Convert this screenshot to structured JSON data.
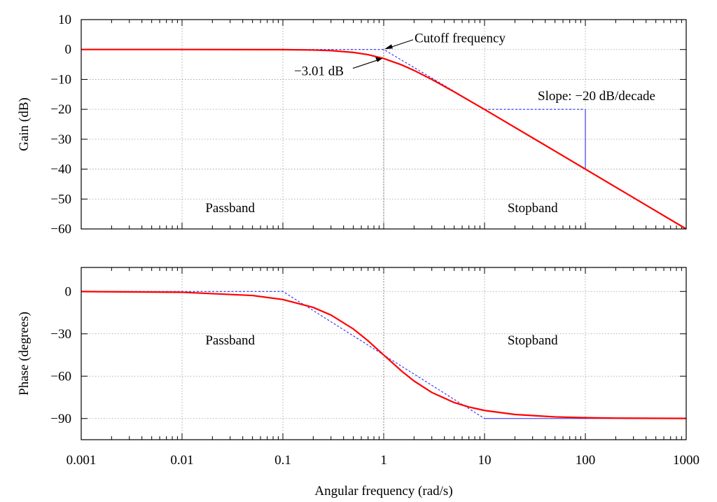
{
  "chart_data": [
    {
      "type": "line",
      "name": "magnitude",
      "xscale": "log",
      "xlim": [
        0.001,
        1000
      ],
      "ylim": [
        -60,
        10
      ],
      "ylabel": "Gain (dB)",
      "yticks": [
        10,
        0,
        -10,
        -20,
        -30,
        -40,
        -50,
        -60
      ],
      "ytick_labels": [
        "10",
        "0",
        "−10",
        "−20",
        "−30",
        "−40",
        "−50",
        "−60"
      ],
      "grid": true,
      "series": [
        {
          "name": "Gain",
          "color": "#ff0000",
          "x": [
            0.001,
            0.01,
            0.1,
            0.2,
            0.3,
            0.5,
            0.7,
            1,
            1.5,
            2,
            3,
            5,
            10,
            20,
            50,
            100,
            200,
            500,
            1000
          ],
          "y": [
            0,
            0,
            -0.04,
            -0.17,
            -0.37,
            -0.97,
            -1.73,
            -3.01,
            -5.12,
            -6.99,
            -10.0,
            -14.15,
            -20.04,
            -26.03,
            -33.98,
            -40.0,
            -46.02,
            -53.98,
            -60.0
          ]
        },
        {
          "name": "Asymptote",
          "color": "#2b2bff",
          "x": [
            0.001,
            1,
            1000
          ],
          "y": [
            0,
            0,
            -60
          ]
        }
      ],
      "slope_triangle": {
        "x": [
          10,
          100
        ],
        "y": [
          -20,
          -40
        ]
      },
      "annotations": [
        {
          "text": "Cutoff frequency",
          "x": 1,
          "y": 0
        },
        {
          "text": "−3.01 dB",
          "x": 1,
          "y": -3.01
        },
        {
          "text": "Slope: −20 dB/decade",
          "x": 100,
          "y": -20
        },
        {
          "text": "Passband",
          "x": 0.03,
          "y": -53
        },
        {
          "text": "Stopband",
          "x": 30,
          "y": -53
        }
      ]
    },
    {
      "type": "line",
      "name": "phase",
      "xscale": "log",
      "xlim": [
        0.001,
        1000
      ],
      "ylim": [
        -105,
        17
      ],
      "ylabel": "Phase (degrees)",
      "xlabel": "Angular frequency (rad/s)",
      "xticks": [
        0.001,
        0.01,
        0.1,
        1,
        10,
        100,
        1000
      ],
      "xtick_labels": [
        "0.001",
        "0.01",
        "0.1",
        "1",
        "10",
        "100",
        "1000"
      ],
      "yticks": [
        0,
        -30,
        -60,
        -90
      ],
      "ytick_labels": [
        "0",
        "−30",
        "−60",
        "−90"
      ],
      "grid": true,
      "series": [
        {
          "name": "Phase",
          "color": "#ff0000",
          "x": [
            0.001,
            0.01,
            0.05,
            0.1,
            0.2,
            0.3,
            0.5,
            0.7,
            1,
            1.5,
            2,
            3,
            5,
            7,
            10,
            20,
            50,
            100,
            200,
            1000
          ],
          "y": [
            -0.06,
            -0.57,
            -2.86,
            -5.71,
            -11.31,
            -16.7,
            -26.57,
            -34.99,
            -45,
            -56.31,
            -63.43,
            -71.57,
            -78.69,
            -81.87,
            -84.29,
            -87.14,
            -88.85,
            -89.43,
            -89.71,
            -89.94
          ]
        },
        {
          "name": "Asymptote",
          "color": "#2b2bff",
          "x": [
            0.001,
            0.1,
            10,
            1000
          ],
          "y": [
            0,
            0,
            -90,
            -90
          ]
        }
      ],
      "annotations": [
        {
          "text": "Passband",
          "x": 0.03,
          "y": -45
        },
        {
          "text": "Stopband",
          "x": 30,
          "y": -45
        }
      ]
    }
  ]
}
